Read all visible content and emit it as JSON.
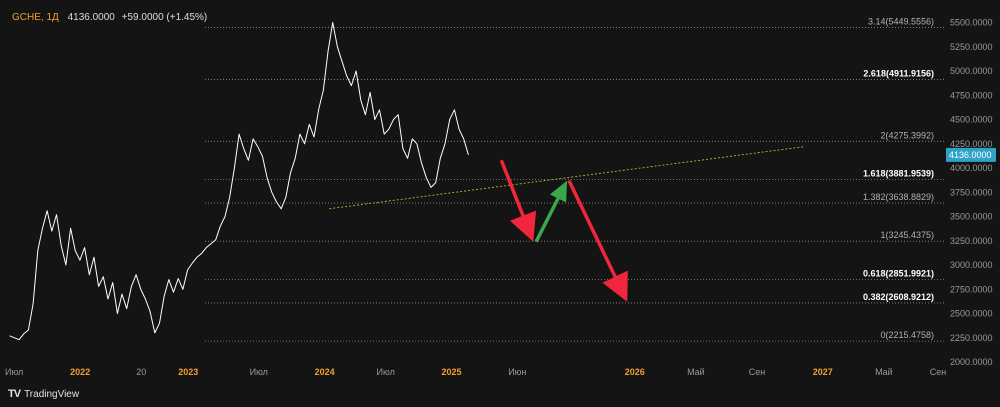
{
  "header": {
    "symbol": "GCHE, 1Д",
    "price": "4136.0000",
    "change": "+59.0000 (+1.45%)"
  },
  "footer": {
    "brand_logo": "TV",
    "brand": "TradingView"
  },
  "colors": {
    "background": "#141414",
    "price_line": "#ffffff",
    "level_line": "#8a8a8a",
    "trend_line": "#b8b830",
    "arrow_down": "#f0263c",
    "arrow_up": "#3aa84a",
    "price_tag": "#2ea3c7",
    "axis_text": "#9a9a9a",
    "time_text_year": "#f0a030"
  },
  "chart_data": {
    "type": "line",
    "title": "",
    "series": [
      {
        "values": [
          2270,
          2250,
          2230,
          2290,
          2330,
          2600,
          3150,
          3380,
          3560,
          3350,
          3520,
          3200,
          3000,
          3380,
          3150,
          3050,
          3180,
          2900,
          3080,
          2780,
          2880,
          2650,
          2820,
          2500,
          2700,
          2550,
          2780,
          2900,
          2750,
          2650,
          2520,
          2300,
          2400,
          2680,
          2850,
          2720,
          2860,
          2750,
          2950,
          3020,
          3080,
          3120,
          3180,
          3220,
          3260,
          3400,
          3500,
          3700,
          4000,
          4350,
          4200,
          4080,
          4300,
          4220,
          4120,
          3900,
          3750,
          3650,
          3580,
          3700,
          3950,
          4100,
          4350,
          4250,
          4450,
          4320,
          4600,
          4800,
          5200,
          5500,
          5250,
          5100,
          4950,
          4850,
          5000,
          4700,
          4550,
          4780,
          4500,
          4600,
          4350,
          4400,
          4500,
          4550,
          4200,
          4100,
          4300,
          4250,
          4050,
          3900,
          3800,
          3850,
          4100,
          4250,
          4500,
          4600,
          4400,
          4300,
          4136
        ]
      }
    ],
    "x_labels": [
      {
        "label": "Июл",
        "pos": 0.0
      },
      {
        "label": "2022",
        "pos": 0.08
      },
      {
        "label": "20",
        "pos": 0.145
      },
      {
        "label": "2023",
        "pos": 0.195
      },
      {
        "label": "Июл",
        "pos": 0.27
      },
      {
        "label": "2024",
        "pos": 0.34
      },
      {
        "label": "Июл",
        "pos": 0.405
      },
      {
        "label": "2025",
        "pos": 0.475
      },
      {
        "label": "Июн",
        "pos": 0.545
      },
      {
        "label": "2026",
        "pos": 0.67
      },
      {
        "label": "Май",
        "pos": 0.735
      },
      {
        "label": "Сен",
        "pos": 0.8
      },
      {
        "label": "2027",
        "pos": 0.87
      },
      {
        "label": "Май",
        "pos": 0.935
      },
      {
        "label": "Сен",
        "pos": 1.0
      }
    ],
    "x_year_labels": [
      "2022",
      "2023",
      "2024",
      "2025",
      "2026",
      "2027"
    ],
    "y_ticks": [
      "5500.0000",
      "5250.0000",
      "5000.0000",
      "4750.0000",
      "4500.0000",
      "4250.0000",
      "4000.0000",
      "3750.0000",
      "3500.0000",
      "3250.0000",
      "3000.0000",
      "2750.0000",
      "2500.0000",
      "2250.0000",
      "2000.0000"
    ],
    "ylim": [
      2000,
      5650
    ],
    "fib_levels": [
      {
        "label": "3.14(5449.5556)",
        "value": 5449.5556,
        "bold": false
      },
      {
        "label": "2.618(4911.9156)",
        "value": 4911.9156,
        "bold": true
      },
      {
        "label": "2(4275.3992)",
        "value": 4275.3992,
        "bold": false
      },
      {
        "label": "1.618(3881.9539)",
        "value": 3881.9539,
        "bold": true
      },
      {
        "label": "1.382(3638.8829)",
        "value": 3638.8829,
        "bold": false
      },
      {
        "label": "1(3245.4375)",
        "value": 3245.4375,
        "bold": false
      },
      {
        "label": "0.618(2851.9921)",
        "value": 2851.9921,
        "bold": true
      },
      {
        "label": "0.382(2608.9212)",
        "value": 2608.9212,
        "bold": true
      },
      {
        "label": "0(2215.4758)",
        "value": 2215.4758,
        "bold": false
      }
    ],
    "current_price_tag": "4136.0000",
    "current_price": 4136,
    "trend_line": {
      "from": [
        0.345,
        3580
      ],
      "to": [
        0.85,
        4220
      ]
    },
    "arrows": [
      {
        "kind": "down",
        "from": [
          0.528,
          4080
        ],
        "to": [
          0.562,
          3240
        ]
      },
      {
        "kind": "up",
        "from": [
          0.565,
          3240
        ],
        "to": [
          0.598,
          3870
        ]
      },
      {
        "kind": "down",
        "from": [
          0.6,
          3870
        ],
        "to": [
          0.662,
          2620
        ]
      }
    ],
    "grid": false
  }
}
